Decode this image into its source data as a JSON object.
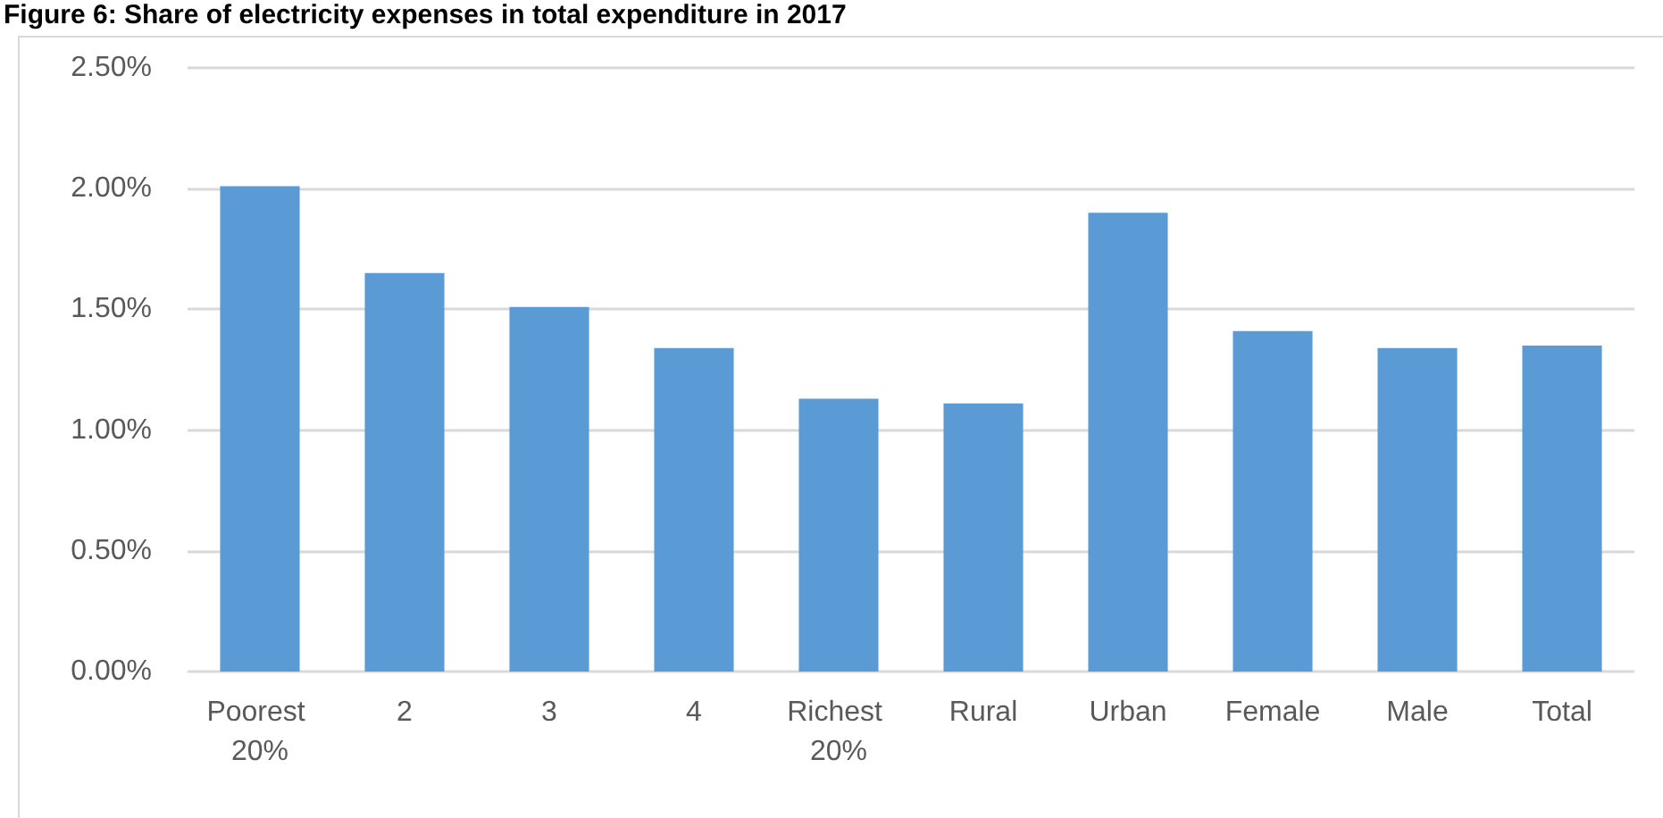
{
  "chart_data": {
    "type": "bar",
    "title": "Figure 6: Share of electricity expenses in total expenditure in 2017",
    "categories": [
      "Poorest 20%",
      "2",
      "3",
      "4",
      "Richest 20%",
      "Rural",
      "Urban",
      "Female",
      "Male",
      "Total"
    ],
    "values": [
      2.01,
      1.65,
      1.51,
      1.34,
      1.13,
      1.11,
      1.9,
      1.41,
      1.34,
      1.35
    ],
    "color": "#5b9bd5",
    "ylim": [
      0,
      2.5
    ],
    "yticks": [
      {
        "value": 0,
        "label": "0.00%"
      },
      {
        "value": 0.5,
        "label": "0.50%"
      },
      {
        "value": 1,
        "label": "1.00%"
      },
      {
        "value": 1.5,
        "label": "1.50%"
      },
      {
        "value": 2,
        "label": "2.00%"
      },
      {
        "value": 2.5,
        "label": "2.50%"
      }
    ],
    "grid": "y"
  }
}
